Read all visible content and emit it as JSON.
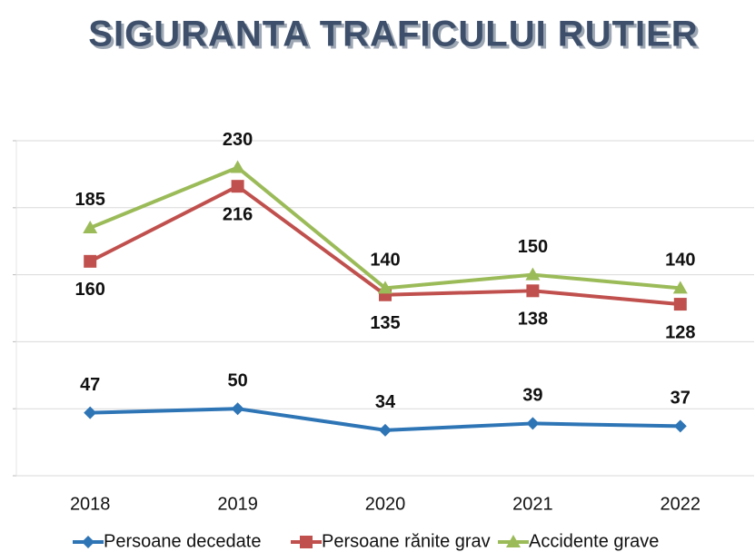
{
  "chart_data": {
    "type": "line",
    "title": "SIGURANTA TRAFICULUI RUTIER",
    "categories": [
      "2018",
      "2019",
      "2020",
      "2021",
      "2022"
    ],
    "series": [
      {
        "name": "Persoane decedate",
        "color": "#2e75b6",
        "marker": "diamond",
        "label_position": "above",
        "values": [
          47,
          50,
          34,
          39,
          37
        ]
      },
      {
        "name": "Persoane rănite grav",
        "color": "#c0504d",
        "marker": "square",
        "label_position": "below",
        "values": [
          160,
          216,
          135,
          138,
          128
        ]
      },
      {
        "name": "Accidente grave",
        "color": "#9bbb59",
        "marker": "triangle",
        "label_position": "above",
        "values": [
          185,
          230,
          140,
          150,
          140
        ]
      }
    ],
    "ylim": [
      0,
      250
    ],
    "yticks": [
      0,
      50,
      100,
      150,
      200,
      250
    ],
    "grid": true,
    "legend": "bottom"
  }
}
